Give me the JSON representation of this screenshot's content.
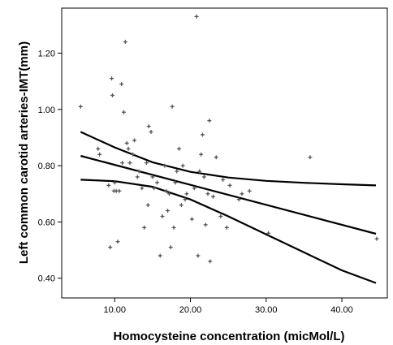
{
  "chart_data": {
    "type": "scatter",
    "title": "",
    "xlabel": "Homocysteine concentration (micMol/L)",
    "ylabel": "Left common carotid arteries-IMT(mm)",
    "xlim": [
      3.0,
      46.0
    ],
    "ylim": [
      0.33,
      1.36
    ],
    "x_ticks": [
      10,
      20,
      30,
      40
    ],
    "x_tick_labels": [
      "10.00",
      "20.00",
      "30.00",
      "40.00"
    ],
    "y_ticks": [
      0.4,
      0.6,
      0.8,
      1.0,
      1.2
    ],
    "y_tick_labels": [
      "0.40",
      "0.60",
      "0.80",
      "1.00",
      "1.20"
    ],
    "grid": false,
    "legend": "none",
    "marker_color": "#555555",
    "line_color": "#000000",
    "points": [
      [
        5.5,
        1.01
      ],
      [
        7.8,
        0.86
      ],
      [
        8.0,
        0.84
      ],
      [
        9.2,
        0.73
      ],
      [
        9.4,
        0.51
      ],
      [
        9.6,
        1.11
      ],
      [
        9.7,
        1.05
      ],
      [
        9.9,
        0.71
      ],
      [
        10.0,
        0.74
      ],
      [
        10.2,
        0.71
      ],
      [
        10.4,
        0.53
      ],
      [
        10.6,
        0.71
      ],
      [
        10.9,
        1.09
      ],
      [
        11.0,
        0.81
      ],
      [
        11.2,
        0.99
      ],
      [
        11.4,
        1.24
      ],
      [
        11.6,
        0.88
      ],
      [
        11.8,
        0.86
      ],
      [
        12.0,
        0.81
      ],
      [
        12.4,
        0.84
      ],
      [
        12.6,
        0.89
      ],
      [
        13.0,
        0.76
      ],
      [
        13.2,
        0.78
      ],
      [
        13.6,
        0.72
      ],
      [
        13.9,
        0.58
      ],
      [
        14.2,
        0.81
      ],
      [
        14.4,
        0.66
      ],
      [
        14.5,
        0.94
      ],
      [
        14.8,
        0.92
      ],
      [
        15.0,
        0.76
      ],
      [
        15.2,
        0.72
      ],
      [
        15.6,
        0.74
      ],
      [
        16.0,
        0.48
      ],
      [
        16.3,
        0.62
      ],
      [
        16.6,
        0.8
      ],
      [
        16.8,
        0.71
      ],
      [
        17.0,
        0.64
      ],
      [
        17.2,
        0.7
      ],
      [
        17.4,
        0.51
      ],
      [
        17.6,
        1.01
      ],
      [
        17.8,
        0.58
      ],
      [
        18.0,
        0.74
      ],
      [
        18.2,
        0.78
      ],
      [
        18.5,
        0.86
      ],
      [
        18.8,
        0.66
      ],
      [
        19.0,
        0.8
      ],
      [
        19.3,
        0.68
      ],
      [
        19.5,
        0.7
      ],
      [
        20.2,
        0.61
      ],
      [
        20.5,
        0.72
      ],
      [
        20.8,
        1.33
      ],
      [
        21.0,
        0.48
      ],
      [
        21.2,
        0.78
      ],
      [
        21.4,
        0.84
      ],
      [
        21.6,
        0.91
      ],
      [
        21.8,
        0.76
      ],
      [
        22.0,
        0.59
      ],
      [
        22.3,
        0.7
      ],
      [
        22.5,
        0.96
      ],
      [
        22.6,
        0.46
      ],
      [
        23.0,
        0.69
      ],
      [
        23.4,
        0.83
      ],
      [
        24.0,
        0.62
      ],
      [
        24.3,
        0.75
      ],
      [
        24.8,
        0.58
      ],
      [
        25.2,
        0.73
      ],
      [
        26.4,
        0.68
      ],
      [
        26.8,
        0.7
      ],
      [
        27.8,
        0.71
      ],
      [
        30.3,
        0.56
      ],
      [
        35.8,
        0.83
      ],
      [
        44.6,
        0.54
      ]
    ],
    "fit_line": {
      "x": [
        5.5,
        44.5
      ],
      "y": [
        0.835,
        0.558
      ]
    },
    "ci_upper": {
      "x": [
        5.5,
        10,
        15,
        20,
        25,
        30,
        35,
        40,
        44.5
      ],
      "y": [
        0.92,
        0.865,
        0.812,
        0.778,
        0.758,
        0.746,
        0.739,
        0.734,
        0.73
      ]
    },
    "ci_lower": {
      "x": [
        5.5,
        10,
        15,
        20,
        25,
        30,
        35,
        40,
        44.5
      ],
      "y": [
        0.75,
        0.745,
        0.725,
        0.68,
        0.62,
        0.556,
        0.492,
        0.428,
        0.383
      ]
    }
  }
}
